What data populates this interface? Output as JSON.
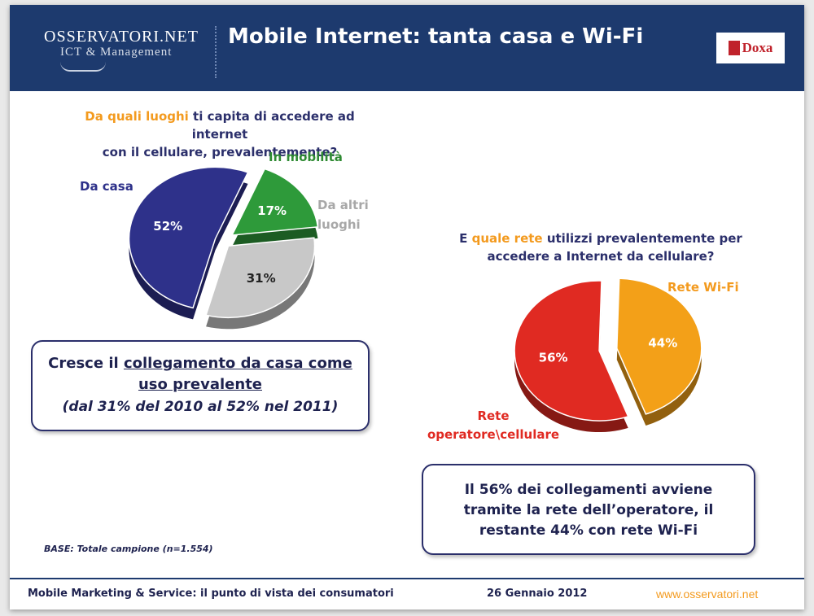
{
  "header": {
    "logo_main": "OSSERVATORI.NET",
    "logo_sub": "ICT & Management",
    "title": "Mobile Internet: tanta casa e Wi-Fi",
    "partner_logo": "Doxa"
  },
  "chart_data": [
    {
      "type": "pie",
      "question_highlight": "Da quali luoghi",
      "question_rest": " ti capita di accedere ad internet",
      "question_line2": "con il cellulare, prevalentemente?",
      "slices": [
        {
          "label": "Da casa",
          "value": 52,
          "value_label": "52%",
          "color": "#2e318a",
          "label_color": "#2e318a"
        },
        {
          "label": "In mobilità",
          "value": 17,
          "value_label": "17%",
          "color": "#2e9a3a",
          "label_color": "#2e8a32"
        },
        {
          "label": "Da altri luoghi",
          "value": 31,
          "value_label": "31%",
          "color": "#c8c8c8",
          "label_color": "#a8a8a8"
        }
      ]
    },
    {
      "type": "pie",
      "question_pre": "E ",
      "question_highlight": "quale rete",
      "question_rest": " utilizzi prevalentemente per",
      "question_line2": "accedere a Internet da cellulare?",
      "slices": [
        {
          "label": "Rete operatore\\cellulare",
          "value": 56,
          "value_label": "56%",
          "color": "#e02a22",
          "label_color": "#e02a22"
        },
        {
          "label": "Rete Wi-Fi",
          "value": 44,
          "value_label": "44%",
          "color": "#f3a018",
          "label_color": "#f39a1e"
        }
      ]
    }
  ],
  "labels": {
    "pie1_casa": "Da casa",
    "pie1_mobilita": "In mobilità",
    "pie1_altri_1": "Da altri",
    "pie1_altri_2": "luoghi",
    "pie2_wifi": "Rete Wi-Fi",
    "pie2_rete_1": "Rete",
    "pie2_rete_2": "operatore\\cellulare"
  },
  "box1": {
    "pre": "Cresce il ",
    "underlined_1": "collegamento da casa come",
    "underlined_2": "uso prevalente",
    "line3": "(dal 31% del 2010 al 52% nel 2011)"
  },
  "box2": {
    "text": "Il 56% dei collegamenti avviene tramite la rete dell’operatore, il restante 44% con rete Wi-Fi"
  },
  "base_note": "BASE: Totale campione (n=1.554)",
  "footer": {
    "left": "Mobile Marketing & Service: il punto di vista dei consumatori",
    "date": "26 Gennaio 2012",
    "url": "www.osservatori.net"
  }
}
